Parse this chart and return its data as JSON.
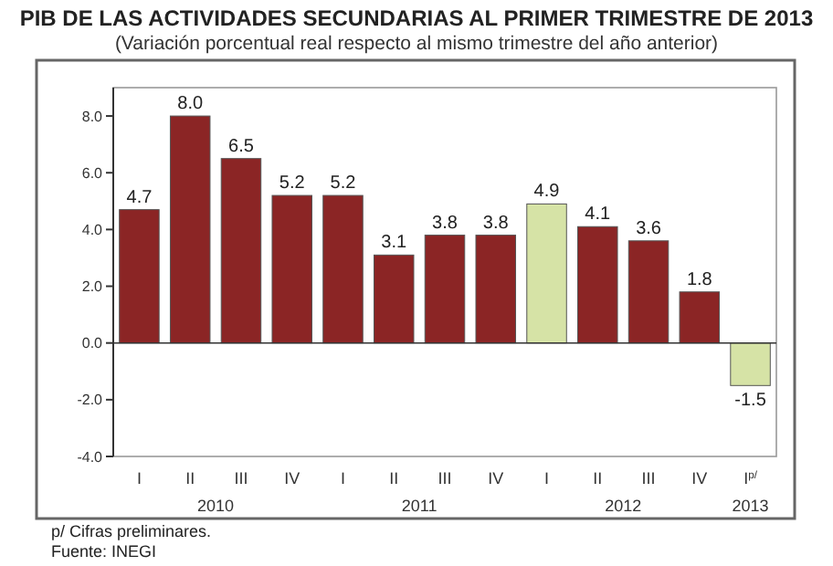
{
  "chart_data": {
    "type": "bar",
    "title": "PIB DE LAS ACTIVIDADES SECUNDARIAS AL PRIMER TRIMESTRE DE 2013",
    "subtitle": "(Variación porcentual real respecto al mismo trimestre del año anterior)",
    "categories": [
      "I",
      "II",
      "III",
      "IV",
      "I",
      "II",
      "III",
      "IV",
      "I",
      "II",
      "III",
      "IV",
      "I$^{p/}$"
    ],
    "values": [
      4.7,
      8.0,
      6.5,
      5.2,
      5.2,
      3.1,
      3.8,
      3.8,
      4.9,
      4.1,
      3.6,
      1.8,
      -1.5
    ],
    "colors": [
      "#8b2525",
      "#8b2525",
      "#8b2525",
      "#8b2525",
      "#8b2525",
      "#8b2525",
      "#8b2525",
      "#8b2525",
      "#d6e3a6",
      "#8b2525",
      "#8b2525",
      "#8b2525",
      "#d6e3a6"
    ],
    "ylim": [
      -4,
      9
    ],
    "yticks": [
      {
        "value": -4,
        "label": "-4.0"
      },
      {
        "value": -2,
        "label": "-2.0"
      },
      {
        "value": 0,
        "label": "0.0"
      },
      {
        "value": 2,
        "label": "2.0"
      },
      {
        "value": 4,
        "label": "4.0"
      },
      {
        "value": 6,
        "label": "6.0"
      },
      {
        "value": 8,
        "label": "8.0"
      }
    ],
    "value_labels": [
      "4.7",
      "8.0",
      "6.5",
      "5.2",
      "5.2",
      "3.1",
      "3.8",
      "3.8",
      "4.9",
      "4.1",
      "3.6",
      "1.8",
      "-1.5"
    ],
    "annotations": [
      "2010",
      "2011",
      "2012",
      "2013",
      "p/ Cifras preliminares.",
      "Fuente: INEGI"
    ]
  }
}
